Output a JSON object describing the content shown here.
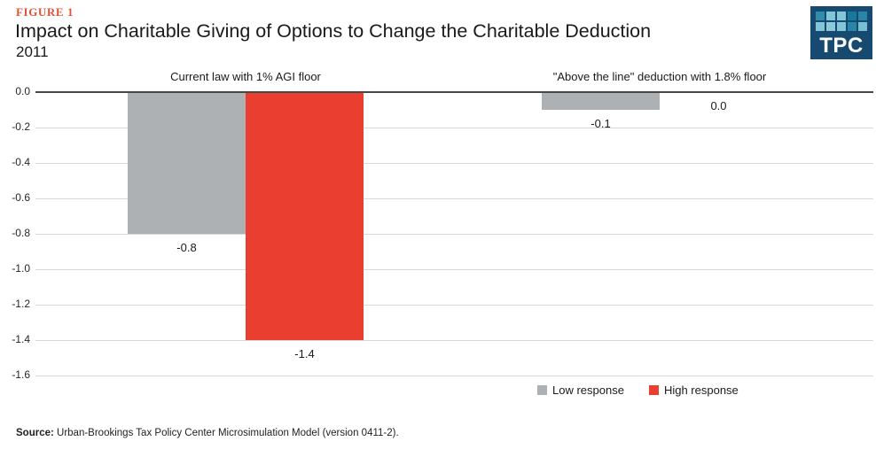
{
  "figure": {
    "label": "FIGURE 1",
    "label_color": "#e25438",
    "title": "Impact on Charitable Giving of Options to Change the Charitable Deduction",
    "subtitle": "2011",
    "source_label": "Source:",
    "source_text": "Urban-Brookings Tax Policy Center Microsimulation Model (version 0411-2)."
  },
  "logo": {
    "text": "TPC",
    "background": "#164a70",
    "square_colors": [
      [
        "#2f8cab",
        "#83c6d8",
        "#83c6d8",
        "#19789d",
        "#2a86a6"
      ],
      [
        "#83c6d8",
        "#8cc9d9",
        "#83c6d8",
        "#2a86a6",
        "#77bfd3"
      ]
    ]
  },
  "chart_data": {
    "type": "bar",
    "categories": [
      "Current law with 1% AGI floor",
      "\"Above the line\" deduction with 1.8% floor"
    ],
    "series": [
      {
        "name": "Low response",
        "color": "#aeb1b4",
        "values": [
          -0.8,
          -0.1
        ]
      },
      {
        "name": "High response",
        "color": "#e93e30",
        "values": [
          -1.4,
          0.0
        ]
      }
    ],
    "title": "Impact on Charitable Giving of Options to Change the Charitable Deduction",
    "subtitle": "2011",
    "xlabel": "",
    "ylabel": "",
    "ylim": [
      -1.6,
      0
    ],
    "ytick_step": 0.2,
    "grid": true,
    "value_labels": true,
    "legend_position": "bottom-right"
  }
}
